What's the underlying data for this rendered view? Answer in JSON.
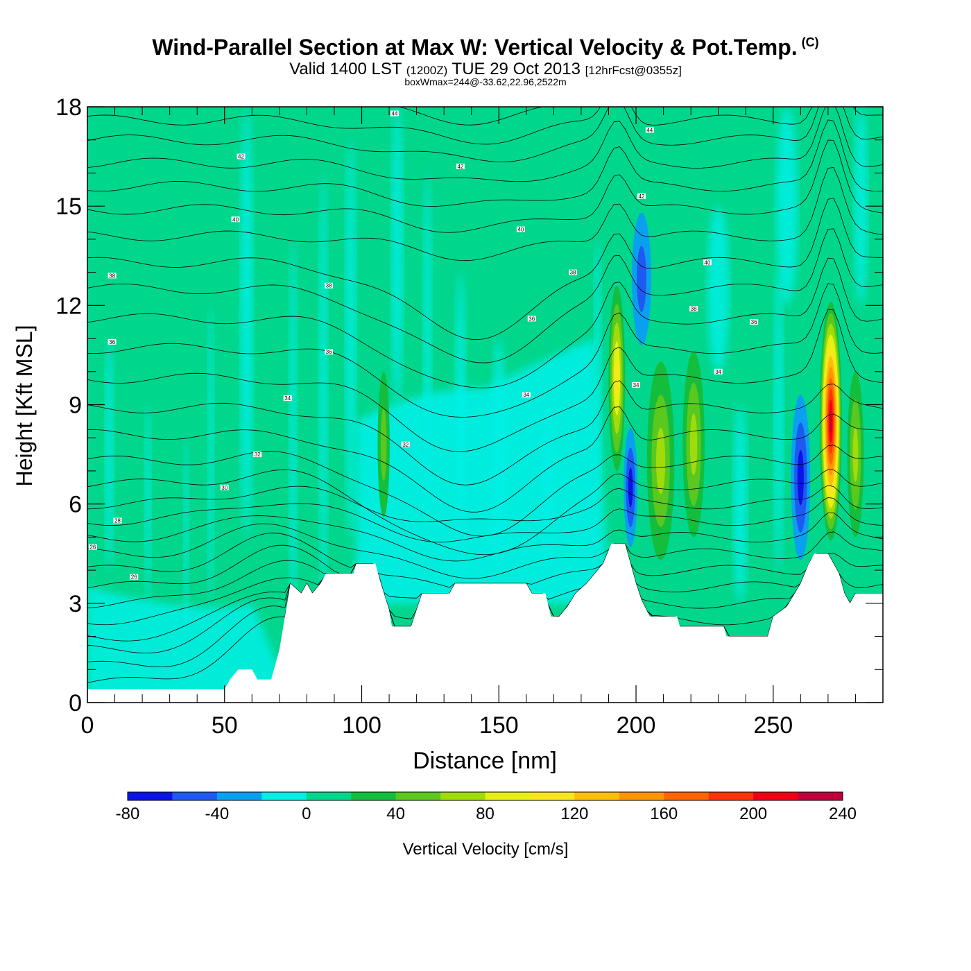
{
  "chart_data": {
    "type": "heatmap",
    "title": "Wind-Parallel Section at Max W: Vertical Velocity & Pot.Temp.",
    "title_mark": "(C)",
    "subtitle_main": "Valid 1400 LST",
    "subtitle_z": "(1200Z)",
    "subtitle_date": "TUE 29 Oct 2013",
    "subtitle_fcst": "[12hrFcst@0355z]",
    "subtitle2": "boxWmax=244@-33.62,22.96,2522m",
    "xlabel": "Distance [nm]",
    "ylabel": "Height [Kft MSL]",
    "xlim": [
      0,
      290
    ],
    "ylim": [
      0,
      18
    ],
    "xticks": [
      "0",
      "50",
      "100",
      "150",
      "200",
      "250"
    ],
    "yticks": [
      "0",
      "3",
      "6",
      "9",
      "12",
      "15",
      "18"
    ],
    "colorbar": {
      "label": "Vertical Velocity [cm/s]",
      "min": -80,
      "max": 240,
      "step": 20,
      "tick_labels": [
        "-80",
        "-40",
        "0",
        "40",
        "80",
        "120",
        "160",
        "200",
        "240"
      ],
      "colors": [
        "#0a14e6",
        "#1e5af0",
        "#0aa0f0",
        "#00f0e6",
        "#00d68c",
        "#14be3c",
        "#5ac81e",
        "#a0dc0a",
        "#e6f014",
        "#fae61e",
        "#ffbe0a",
        "#ff9600",
        "#ff6400",
        "#ff320a",
        "#f00014",
        "#be003c"
      ]
    },
    "terrain": [
      [
        0,
        0.4
      ],
      [
        50,
        0.4
      ],
      [
        52,
        0.7
      ],
      [
        55,
        1.0
      ],
      [
        60,
        1.0
      ],
      [
        62,
        0.7
      ],
      [
        67,
        0.7
      ],
      [
        68,
        1.0
      ],
      [
        70,
        1.6
      ],
      [
        72,
        2.6
      ],
      [
        74,
        3.6
      ],
      [
        78,
        3.3
      ],
      [
        80,
        3.6
      ],
      [
        82,
        3.3
      ],
      [
        85,
        3.6
      ],
      [
        87,
        3.9
      ],
      [
        97,
        3.9
      ],
      [
        98,
        4.2
      ],
      [
        105,
        4.2
      ],
      [
        107,
        3.6
      ],
      [
        110,
        2.8
      ],
      [
        111,
        2.3
      ],
      [
        118,
        2.3
      ],
      [
        120,
        2.8
      ],
      [
        122,
        3.3
      ],
      [
        132,
        3.3
      ],
      [
        134,
        3.6
      ],
      [
        160,
        3.6
      ],
      [
        162,
        3.3
      ],
      [
        167,
        3.3
      ],
      [
        169,
        2.6
      ],
      [
        172,
        2.6
      ],
      [
        175,
        2.9
      ],
      [
        178,
        3.3
      ],
      [
        182,
        3.6
      ],
      [
        188,
        4.2
      ],
      [
        191,
        4.8
      ],
      [
        196,
        4.8
      ],
      [
        198,
        4.2
      ],
      [
        200,
        3.6
      ],
      [
        202,
        3.1
      ],
      [
        205,
        2.6
      ],
      [
        215,
        2.6
      ],
      [
        216,
        2.3
      ],
      [
        232,
        2.3
      ],
      [
        233,
        2.0
      ],
      [
        248,
        2.0
      ],
      [
        250,
        2.6
      ],
      [
        255,
        2.9
      ],
      [
        260,
        3.6
      ],
      [
        263,
        4.2
      ],
      [
        265,
        4.5
      ],
      [
        270,
        4.5
      ],
      [
        274,
        3.9
      ],
      [
        276,
        3.3
      ],
      [
        278,
        3.0
      ],
      [
        280,
        3.3
      ],
      [
        290,
        3.3
      ]
    ],
    "wcells": [
      {
        "x": 108,
        "y": 7.8,
        "rx": 2.2,
        "ry": 2.2,
        "w": 40
      },
      {
        "x": 193,
        "y": 9.8,
        "rx": 3.0,
        "ry": 2.8,
        "w": 100
      },
      {
        "x": 198,
        "y": 6.5,
        "rx": 2.5,
        "ry": 1.8,
        "w": -50
      },
      {
        "x": 202,
        "y": 12.8,
        "rx": 3.5,
        "ry": 2.0,
        "w": -30
      },
      {
        "x": 209,
        "y": 7.3,
        "rx": 5.0,
        "ry": 3.0,
        "w": 60
      },
      {
        "x": 221,
        "y": 7.8,
        "rx": 4.0,
        "ry": 2.8,
        "w": 50
      },
      {
        "x": 260,
        "y": 6.8,
        "rx": 3.5,
        "ry": 2.5,
        "w": -60
      },
      {
        "x": 271,
        "y": 8.5,
        "rx": 4.0,
        "ry": 3.6,
        "w": 210
      },
      {
        "x": 280,
        "y": 7.5,
        "rx": 3.0,
        "ry": 2.5,
        "w": 60
      }
    ],
    "theta_labels": [
      {
        "x": 112,
        "y": 17.8,
        "text": "44"
      },
      {
        "x": 205,
        "y": 17.3,
        "text": "44"
      },
      {
        "x": 56,
        "y": 16.5,
        "text": "42"
      },
      {
        "x": 136,
        "y": 16.2,
        "text": "42"
      },
      {
        "x": 202,
        "y": 15.3,
        "text": "42"
      },
      {
        "x": 54,
        "y": 14.6,
        "text": "40"
      },
      {
        "x": 158,
        "y": 14.3,
        "text": "40"
      },
      {
        "x": 226,
        "y": 13.3,
        "text": "40"
      },
      {
        "x": 9,
        "y": 12.9,
        "text": "38"
      },
      {
        "x": 177,
        "y": 13.0,
        "text": "38"
      },
      {
        "x": 88,
        "y": 12.6,
        "text": "38"
      },
      {
        "x": 221,
        "y": 11.9,
        "text": "38"
      },
      {
        "x": 9,
        "y": 10.9,
        "text": "36"
      },
      {
        "x": 162,
        "y": 11.6,
        "text": "36"
      },
      {
        "x": 243,
        "y": 11.5,
        "text": "36"
      },
      {
        "x": 88,
        "y": 10.6,
        "text": "36"
      },
      {
        "x": 73,
        "y": 9.2,
        "text": "34"
      },
      {
        "x": 160,
        "y": 9.3,
        "text": "34"
      },
      {
        "x": 200,
        "y": 9.6,
        "text": "34"
      },
      {
        "x": 230,
        "y": 10.0,
        "text": "34"
      },
      {
        "x": 62,
        "y": 7.5,
        "text": "32"
      },
      {
        "x": 116,
        "y": 7.8,
        "text": "32"
      },
      {
        "x": 50,
        "y": 6.5,
        "text": "30"
      },
      {
        "x": 11,
        "y": 5.5,
        "text": "28"
      },
      {
        "x": 2,
        "y": 4.7,
        "text": "26"
      },
      {
        "x": 17,
        "y": 3.8,
        "text": "26"
      }
    ]
  }
}
